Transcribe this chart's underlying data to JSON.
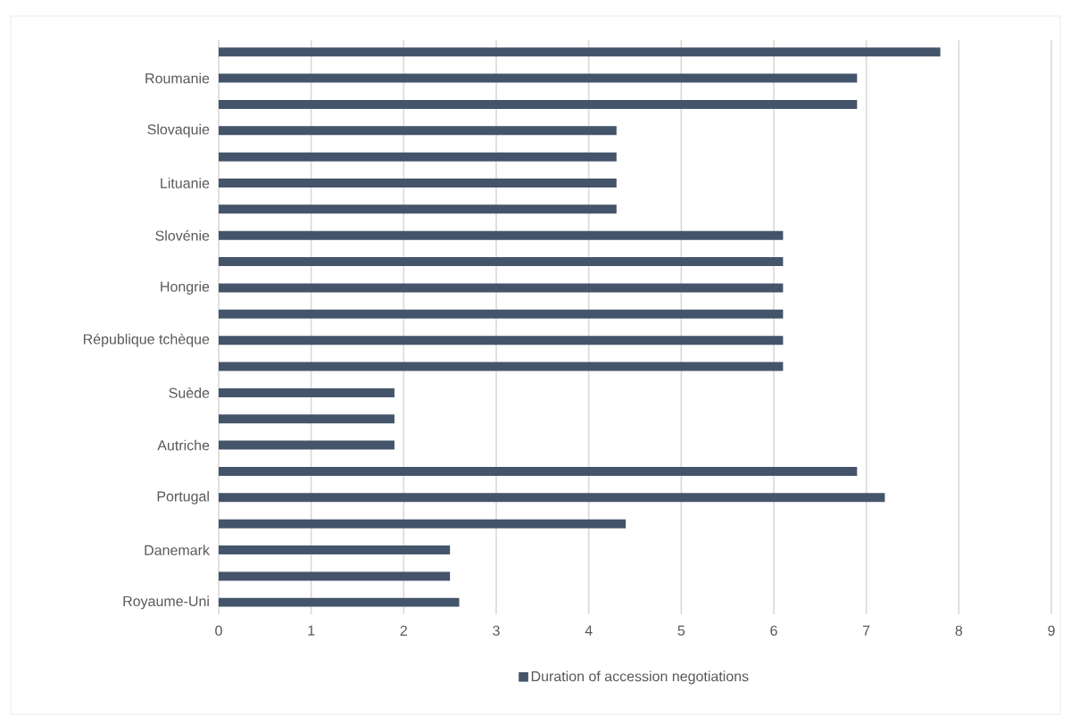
{
  "chart_data": {
    "type": "bar",
    "orientation": "horizontal",
    "categories": [
      null,
      "Roumanie",
      null,
      "Slovaquie",
      null,
      "Lituanie",
      null,
      "Slovénie",
      null,
      "Hongrie",
      null,
      "République tchèque",
      null,
      "Suède",
      null,
      "Autriche",
      null,
      "Portugal",
      null,
      "Danemark",
      null,
      "Royaume-Uni"
    ],
    "series": [
      {
        "name": "Duration of accession negotiations",
        "color": "#44546a",
        "values": [
          7.8,
          6.9,
          6.9,
          4.3,
          4.3,
          4.3,
          4.3,
          6.1,
          6.1,
          6.1,
          6.1,
          6.1,
          6.1,
          1.9,
          1.9,
          1.9,
          6.9,
          7.2,
          4.4,
          2.5,
          2.5,
          2.6
        ]
      }
    ],
    "xlim": [
      0,
      9
    ],
    "xticks": [
      0,
      1,
      2,
      3,
      4,
      5,
      6,
      7,
      8,
      9
    ],
    "grid": "x",
    "legend": "bottom"
  }
}
